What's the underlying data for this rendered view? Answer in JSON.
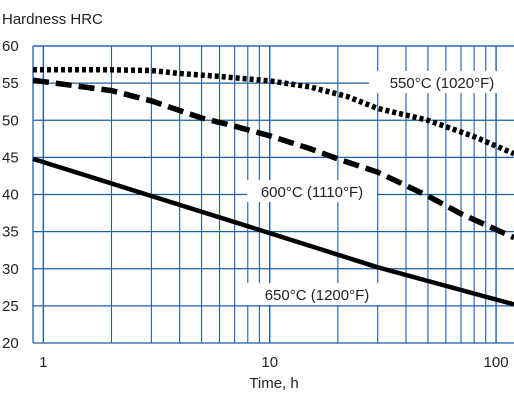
{
  "chart_data": {
    "type": "line",
    "title": "Hardness HRC",
    "xlabel": "Time, h",
    "ylabel": "Hardness HRC",
    "x_scale": "log",
    "xlim": [
      0.9,
      120
    ],
    "ylim": [
      20,
      60
    ],
    "x_ticks": [
      1,
      10,
      100
    ],
    "x_tick_labels": [
      "1",
      "10",
      "100"
    ],
    "y_ticks": [
      20,
      25,
      30,
      35,
      40,
      45,
      50,
      55,
      60
    ],
    "y_tick_labels": [
      "20",
      "25",
      "30",
      "35",
      "40",
      "45",
      "50",
      "55",
      "60"
    ],
    "grid": true,
    "grid_color": "#1f5fa8",
    "line_color": "#000000",
    "series": [
      {
        "name": "550°C (1020°F)",
        "style": "dotted",
        "points": [
          [
            0.9,
            56.8
          ],
          [
            2,
            56.8
          ],
          [
            3,
            56.7
          ],
          [
            4,
            56.3
          ],
          [
            6,
            55.9
          ],
          [
            10,
            55.3
          ],
          [
            15,
            54.5
          ],
          [
            22,
            53.2
          ],
          [
            30,
            51.6
          ],
          [
            50,
            50.0
          ],
          [
            80,
            47.8
          ],
          [
            120,
            45.5
          ]
        ]
      },
      {
        "name": "600°C (1110°F)",
        "style": "dashed",
        "points": [
          [
            0.9,
            55.4
          ],
          [
            2,
            54.0
          ],
          [
            3,
            52.6
          ],
          [
            5,
            50.3
          ],
          [
            7,
            49.2
          ],
          [
            10,
            47.9
          ],
          [
            15,
            46.2
          ],
          [
            20,
            44.8
          ],
          [
            30,
            43.0
          ],
          [
            50,
            39.8
          ],
          [
            70,
            37.4
          ],
          [
            120,
            34.2
          ]
        ]
      },
      {
        "name": "650°C (1200°F)",
        "style": "solid",
        "points": [
          [
            0.9,
            44.8
          ],
          [
            3,
            39.8
          ],
          [
            10,
            34.8
          ],
          [
            30,
            30.2
          ],
          [
            120,
            25.2
          ]
        ]
      }
    ]
  }
}
